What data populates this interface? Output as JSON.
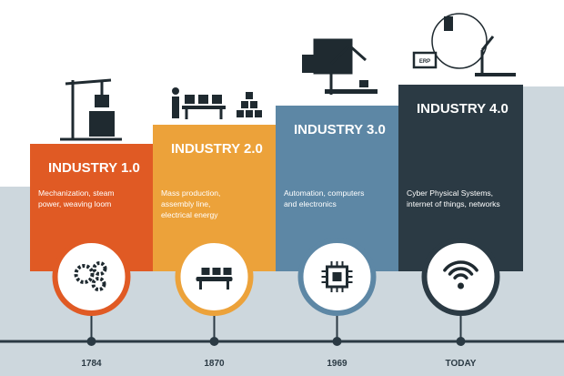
{
  "stages": [
    {
      "title": "INDUSTRY 1.0",
      "description": [
        "Mechanization, steam",
        "power, weaving loom"
      ],
      "year": "1784",
      "color": "#e05a24"
    },
    {
      "title": "INDUSTRY 2.0",
      "description": [
        "Mass production,",
        "assembly line,",
        "electrical energy"
      ],
      "year": "1870",
      "color": "#eca23a"
    },
    {
      "title": "INDUSTRY 3.0",
      "description": [
        "Automation, computers",
        "and electronics"
      ],
      "year": "1969",
      "color": "#5d87a5"
    },
    {
      "title": "INDUSTRY 4.0",
      "description": [
        "Cyber Physical Systems,",
        "internet of things, networks"
      ],
      "year": "TODAY",
      "color": "#2b3a44"
    }
  ],
  "icon_label": "ERP"
}
